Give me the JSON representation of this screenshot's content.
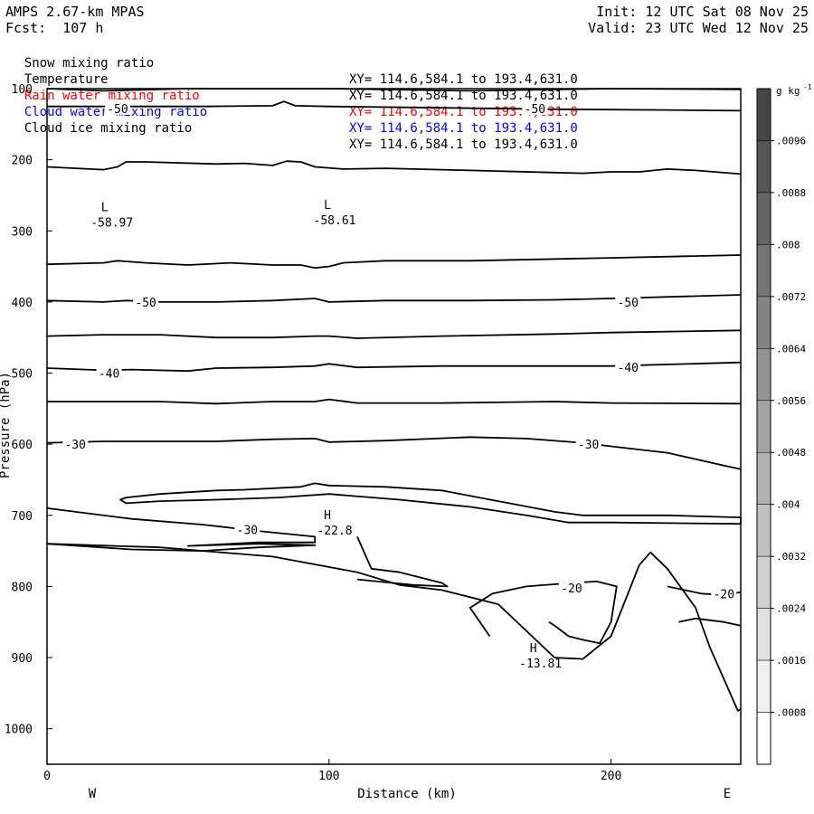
{
  "header": {
    "model": "AMPS 2.67-km MPAS",
    "forecast": "Fcst:  107 h",
    "init": "Init: 12 UTC Sat 08 Nov 25",
    "valid": "Valid: 23 UTC Wed 12 Nov 25"
  },
  "fields": [
    {
      "label": "Snow mixing ratio",
      "xy": "XY= 114.6,584.1 to 193.4,631.0",
      "color": "#000000"
    },
    {
      "label": "Temperature",
      "xy": "XY= 114.6,584.1 to 193.4,631.0",
      "color": "#000000"
    },
    {
      "label": "Rain water mixing ratio",
      "xy": "XY= 114.6,584.1 to 193.4,631.0",
      "color": "#ff0000"
    },
    {
      "label": "Cloud water mixing ratio",
      "xy": "XY= 114.6,584.1 to 193.4,631.0",
      "color": "#0000ff"
    },
    {
      "label": "Cloud ice mixing ratio",
      "xy": "XY= 114.6,584.1 to 193.4,631.0",
      "color": "#000000"
    }
  ],
  "chart_data": {
    "type": "line",
    "xlabel": "Distance (km)",
    "ylabel": "Pressure (hPa)",
    "xlim": [
      0,
      246
    ],
    "ylim": [
      1050,
      100
    ],
    "xticks": [
      0,
      100,
      200
    ],
    "yticks": [
      100,
      200,
      300,
      400,
      500,
      600,
      700,
      800,
      900,
      1000
    ],
    "left_end_label": "W",
    "right_end_label": "E",
    "colorbar": {
      "unit": "g kg",
      "unit_superscript": "-1",
      "ticks": [
        ".0096",
        ".0088",
        ".008",
        ".0072",
        ".0064",
        ".0056",
        ".0048",
        ".004",
        ".0032",
        ".0024",
        ".0016",
        ".0008"
      ]
    },
    "extrema": [
      {
        "type": "L",
        "value": "-58.97",
        "x": 23,
        "p": 285
      },
      {
        "type": "L",
        "value": "-58.61",
        "x": 102,
        "p": 282
      },
      {
        "type": "H",
        "value": "-22.8",
        "x": 102,
        "p": 718
      },
      {
        "type": "H",
        "value": "-13.81",
        "x": 175,
        "p": 905
      }
    ],
    "contour_labels": [
      {
        "text": "-50",
        "x": 25,
        "p": 128
      },
      {
        "text": "-50",
        "x": 173,
        "p": 128
      },
      {
        "text": "-50",
        "x": 35,
        "p": 400
      },
      {
        "text": "-50",
        "x": 206,
        "p": 400
      },
      {
        "text": "-40",
        "x": 22,
        "p": 500
      },
      {
        "text": "-40",
        "x": 206,
        "p": 492
      },
      {
        "text": "-30",
        "x": 10,
        "p": 600
      },
      {
        "text": "-30",
        "x": 192,
        "p": 600
      },
      {
        "text": "-30",
        "x": 71,
        "p": 720
      },
      {
        "text": "-20",
        "x": 186,
        "p": 802
      },
      {
        "text": "-20",
        "x": 240,
        "p": 810
      }
    ],
    "isotherms": [
      {
        "name": "-60 upper",
        "points": [
          [
            0,
            100
          ],
          [
            20,
            103
          ],
          [
            50,
            100
          ],
          [
            100,
            100
          ],
          [
            150,
            103
          ],
          [
            200,
            100
          ],
          [
            246,
            101
          ]
        ]
      },
      {
        "name": "-55 upper",
        "points": [
          [
            0,
            125
          ],
          [
            30,
            125
          ],
          [
            55,
            125
          ],
          [
            80,
            124
          ],
          [
            84,
            118
          ],
          [
            88,
            124
          ],
          [
            100,
            125
          ],
          [
            140,
            127
          ],
          [
            180,
            129
          ],
          [
            220,
            130
          ],
          [
            246,
            131
          ]
        ]
      },
      {
        "name": "-55 lower",
        "points": [
          [
            0,
            210
          ],
          [
            20,
            214
          ],
          [
            25,
            210
          ],
          [
            28,
            203
          ],
          [
            35,
            203
          ],
          [
            60,
            206
          ],
          [
            70,
            205
          ],
          [
            80,
            208
          ],
          [
            85,
            202
          ],
          [
            90,
            203
          ],
          [
            95,
            210
          ],
          [
            105,
            213
          ],
          [
            120,
            212
          ],
          [
            150,
            215
          ],
          [
            180,
            218
          ],
          [
            190,
            219
          ],
          [
            200,
            217
          ],
          [
            210,
            217
          ],
          [
            220,
            213
          ],
          [
            230,
            215
          ],
          [
            246,
            220
          ]
        ]
      },
      {
        "name": "-52.5",
        "points": [
          [
            0,
            347
          ],
          [
            20,
            345
          ],
          [
            25,
            342
          ],
          [
            35,
            345
          ],
          [
            50,
            348
          ],
          [
            65,
            345
          ],
          [
            80,
            348
          ],
          [
            90,
            348
          ],
          [
            95,
            352
          ],
          [
            100,
            350
          ],
          [
            105,
            345
          ],
          [
            120,
            342
          ],
          [
            150,
            342
          ],
          [
            200,
            338
          ],
          [
            246,
            334
          ]
        ]
      },
      {
        "name": "-50",
        "points": [
          [
            0,
            398
          ],
          [
            20,
            400
          ],
          [
            28,
            398
          ],
          [
            40,
            400
          ],
          [
            60,
            400
          ],
          [
            80,
            398
          ],
          [
            95,
            395
          ],
          [
            100,
            400
          ],
          [
            120,
            398
          ],
          [
            150,
            398
          ],
          [
            180,
            397
          ],
          [
            200,
            395
          ],
          [
            246,
            390
          ]
        ]
      },
      {
        "name": "-45",
        "points": [
          [
            0,
            448
          ],
          [
            20,
            446
          ],
          [
            40,
            446
          ],
          [
            60,
            450
          ],
          [
            80,
            450
          ],
          [
            95,
            448
          ],
          [
            100,
            448
          ],
          [
            110,
            451
          ],
          [
            140,
            448
          ],
          [
            180,
            445
          ],
          [
            200,
            443
          ],
          [
            246,
            440
          ]
        ]
      },
      {
        "name": "-40",
        "points": [
          [
            0,
            493
          ],
          [
            20,
            496
          ],
          [
            30,
            495
          ],
          [
            50,
            497
          ],
          [
            60,
            493
          ],
          [
            80,
            492
          ],
          [
            95,
            490
          ],
          [
            100,
            487
          ],
          [
            110,
            492
          ],
          [
            140,
            490
          ],
          [
            180,
            490
          ],
          [
            200,
            490
          ],
          [
            246,
            485
          ]
        ]
      },
      {
        "name": "-35",
        "points": [
          [
            0,
            540
          ],
          [
            20,
            540
          ],
          [
            40,
            540
          ],
          [
            60,
            543
          ],
          [
            80,
            540
          ],
          [
            95,
            540
          ],
          [
            100,
            537
          ],
          [
            110,
            542
          ],
          [
            140,
            542
          ],
          [
            180,
            540
          ],
          [
            200,
            542
          ],
          [
            246,
            543
          ]
        ]
      },
      {
        "name": "-30",
        "points": [
          [
            0,
            598
          ],
          [
            20,
            596
          ],
          [
            40,
            596
          ],
          [
            60,
            596
          ],
          [
            80,
            593
          ],
          [
            95,
            592
          ],
          [
            100,
            597
          ],
          [
            120,
            595
          ],
          [
            150,
            590
          ],
          [
            170,
            592
          ],
          [
            190,
            598
          ],
          [
            200,
            603
          ],
          [
            220,
            612
          ],
          [
            240,
            630
          ],
          [
            246,
            635
          ]
        ]
      },
      {
        "name": "-25 closed",
        "points": [
          [
            28,
            675
          ],
          [
            40,
            670
          ],
          [
            60,
            665
          ],
          [
            70,
            664
          ],
          [
            90,
            660
          ],
          [
            95,
            655
          ],
          [
            100,
            658
          ],
          [
            120,
            660
          ],
          [
            140,
            665
          ],
          [
            160,
            680
          ],
          [
            180,
            695
          ],
          [
            190,
            700
          ],
          [
            220,
            700
          ],
          [
            246,
            703
          ],
          [
            246,
            712
          ],
          [
            200,
            710
          ],
          [
            185,
            710
          ],
          [
            170,
            700
          ],
          [
            150,
            688
          ],
          [
            125,
            678
          ],
          [
            100,
            670
          ],
          [
            82,
            675
          ],
          [
            60,
            678
          ],
          [
            40,
            680
          ],
          [
            28,
            683
          ],
          [
            26,
            678
          ],
          [
            28,
            675
          ]
        ]
      },
      {
        "name": "-30 lens",
        "points": [
          [
            0,
            690
          ],
          [
            30,
            705
          ],
          [
            55,
            713
          ],
          [
            75,
            722
          ],
          [
            95,
            730
          ],
          [
            95,
            738
          ],
          [
            75,
            738
          ],
          [
            50,
            743
          ],
          [
            75,
            740
          ],
          [
            95,
            742
          ],
          [
            75,
            745
          ],
          [
            55,
            750
          ],
          [
            30,
            748
          ],
          [
            0,
            740
          ]
        ]
      },
      {
        "name": "-20 bulb",
        "points": [
          [
            110,
            730
          ],
          [
            115,
            775
          ],
          [
            125,
            780
          ],
          [
            140,
            795
          ],
          [
            142,
            800
          ],
          [
            130,
            798
          ],
          [
            110,
            790
          ]
        ]
      },
      {
        "name": "terrain surface",
        "points": [
          [
            0,
            740
          ],
          [
            40,
            745
          ],
          [
            80,
            758
          ],
          [
            110,
            780
          ],
          [
            125,
            798
          ],
          [
            140,
            805
          ],
          [
            160,
            825
          ],
          [
            172,
            870
          ],
          [
            180,
            900
          ],
          [
            190,
            902
          ],
          [
            200,
            870
          ],
          [
            210,
            770
          ],
          [
            214,
            752
          ],
          [
            220,
            775
          ],
          [
            230,
            830
          ],
          [
            235,
            885
          ],
          [
            240,
            930
          ],
          [
            245,
            975
          ],
          [
            246,
            972
          ]
        ]
      },
      {
        "name": "-20 loop",
        "points": [
          [
            157,
            870
          ],
          [
            150,
            830
          ],
          [
            158,
            810
          ],
          [
            170,
            800
          ],
          [
            186,
            795
          ],
          [
            195,
            793
          ],
          [
            202,
            800
          ],
          [
            200,
            850
          ],
          [
            196,
            880
          ],
          [
            190,
            875
          ],
          [
            185,
            870
          ],
          [
            180,
            855
          ],
          [
            178,
            850
          ]
        ]
      },
      {
        "name": "-17 contour",
        "points": [
          [
            220,
            800
          ],
          [
            232,
            810
          ],
          [
            240,
            812
          ],
          [
            246,
            808
          ]
        ]
      },
      {
        "name": "-15 wiggle",
        "points": [
          [
            224,
            850
          ],
          [
            230,
            845
          ],
          [
            240,
            850
          ],
          [
            246,
            855
          ]
        ]
      }
    ]
  }
}
